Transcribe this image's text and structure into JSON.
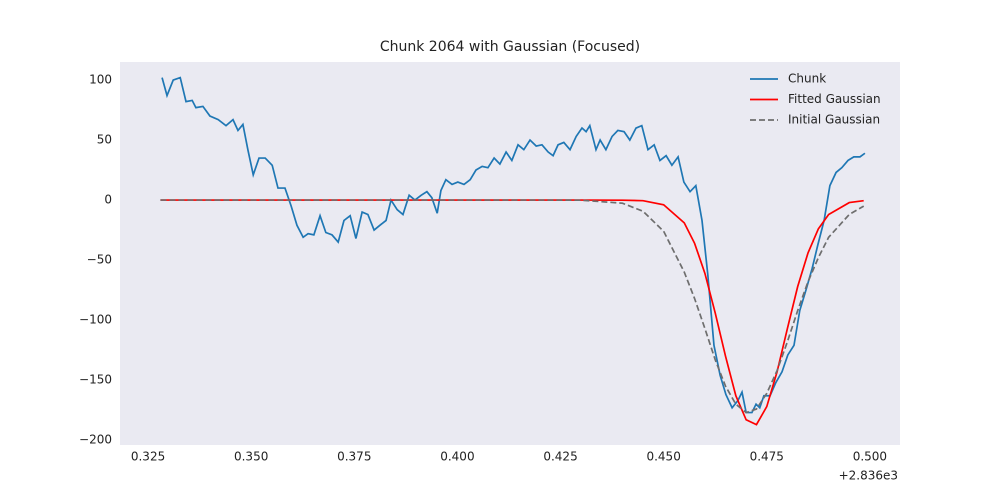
{
  "chart_data": {
    "type": "line",
    "title": "Chunk 2064 with Gaussian (Focused)",
    "x_offset_label": "+2.836e3",
    "xlim": [
      0.3182,
      0.5073
    ],
    "ylim": [
      -204,
      115
    ],
    "xticks": [
      0.325,
      {
        "value": 0.35,
        "label": "0.350"
      },
      0.375,
      {
        "value": 0.4,
        "label": "0.400"
      },
      0.425,
      {
        "value": 0.45,
        "label": "0.450"
      },
      0.475,
      {
        "value": 0.5,
        "label": "0.500"
      }
    ],
    "yticks": [
      {
        "value": -200,
        "label": "−200"
      },
      {
        "value": -150,
        "label": "−150"
      },
      {
        "value": -100,
        "label": "−100"
      },
      {
        "value": -50,
        "label": "−50"
      },
      0,
      50,
      100
    ],
    "grid": false,
    "legend": "upper right",
    "series": [
      {
        "name": "Chunk",
        "color": "#1f77b4",
        "linestyle": "solid",
        "x": [
          0.3284,
          0.3296,
          0.3311,
          0.3328,
          0.3342,
          0.3357,
          0.3366,
          0.3383,
          0.34,
          0.342,
          0.3439,
          0.3456,
          0.3468,
          0.348,
          0.3492,
          0.3505,
          0.3519,
          0.3534,
          0.3551,
          0.3565,
          0.3582,
          0.3597,
          0.3611,
          0.3626,
          0.3638,
          0.3652,
          0.3667,
          0.3681,
          0.3696,
          0.3711,
          0.3725,
          0.374,
          0.3754,
          0.3769,
          0.3783,
          0.3798,
          0.3812,
          0.3827,
          0.3839,
          0.3854,
          0.3868,
          0.3883,
          0.3897,
          0.3912,
          0.3926,
          0.3938,
          0.3951,
          0.396,
          0.3972,
          0.3987,
          0.4001,
          0.4016,
          0.4031,
          0.4045,
          0.406,
          0.4074,
          0.4089,
          0.4103,
          0.4118,
          0.4132,
          0.4147,
          0.4161,
          0.4176,
          0.4191,
          0.4205,
          0.422,
          0.4232,
          0.4244,
          0.4258,
          0.4273,
          0.4288,
          0.4302,
          0.4312,
          0.4321,
          0.4336,
          0.4346,
          0.436,
          0.4375,
          0.4389,
          0.4404,
          0.4418,
          0.4433,
          0.4447,
          0.4462,
          0.4477,
          0.4491,
          0.4506,
          0.452,
          0.4535,
          0.4549,
          0.4564,
          0.4578,
          0.4593,
          0.4607,
          0.4622,
          0.4637,
          0.4651,
          0.4666,
          0.468,
          0.469,
          0.47,
          0.4714,
          0.4724,
          0.4733,
          0.4743,
          0.4758,
          0.4772,
          0.4787,
          0.4801,
          0.4816,
          0.483,
          0.4845,
          0.486,
          0.4874,
          0.4889,
          0.4903,
          0.4918,
          0.4932,
          0.4947,
          0.4961,
          0.4976,
          0.4988
        ],
        "values": [
          102,
          87,
          100,
          102,
          82,
          83,
          77,
          78,
          70,
          67,
          62,
          67,
          58,
          63,
          42,
          21,
          35,
          35,
          29,
          10,
          10,
          -5,
          -21,
          -31,
          -28,
          -29,
          -13,
          -27,
          -29,
          -35,
          -17,
          -13,
          -32,
          -10,
          -12,
          -25,
          -21,
          -17,
          0,
          -8,
          -12,
          4,
          0,
          4,
          7,
          2,
          -11,
          8,
          17,
          13,
          15,
          13,
          17,
          25,
          28,
          27,
          35,
          30,
          40,
          33,
          46,
          42,
          50,
          45,
          46,
          40,
          37,
          46,
          48,
          42,
          53,
          60,
          57,
          62,
          42,
          50,
          42,
          53,
          58,
          57,
          50,
          60,
          62,
          42,
          46,
          33,
          37,
          29,
          36,
          15,
          7,
          12,
          -17,
          -62,
          -121,
          -146,
          -162,
          -173,
          -167,
          -160,
          -177,
          -177,
          -170,
          -173,
          -163,
          -163,
          -152,
          -143,
          -129,
          -121,
          -92,
          -75,
          -57,
          -37,
          -17,
          12,
          23,
          27,
          33,
          36,
          36,
          39
        ]
      },
      {
        "name": "Fitted Gaussian",
        "color": "#ff0000",
        "linestyle": "solid",
        "x": [
          0.328,
          0.35,
          0.4,
          0.42,
          0.43,
          0.44,
          0.445,
          0.45,
          0.455,
          0.4575,
          0.46,
          0.4625,
          0.465,
          0.4675,
          0.47,
          0.4725,
          0.475,
          0.4775,
          0.48,
          0.4825,
          0.485,
          0.4875,
          0.49,
          0.495,
          0.4985
        ],
        "values": [
          0,
          0,
          0,
          0,
          0,
          -0.1,
          -0.5,
          -3.9,
          -19,
          -36,
          -61,
          -94,
          -130,
          -163,
          -183,
          -187,
          -172,
          -143,
          -107,
          -72,
          -44,
          -24,
          -12,
          -2.1,
          -0.5
        ]
      },
      {
        "name": "Initial Gaussian",
        "color": "#6e6e6e",
        "linestyle": "dashed",
        "x": [
          0.328,
          0.35,
          0.4,
          0.42,
          0.43,
          0.44,
          0.445,
          0.45,
          0.455,
          0.4575,
          0.46,
          0.4625,
          0.465,
          0.4675,
          0.47,
          0.4725,
          0.475,
          0.4775,
          0.48,
          0.4825,
          0.485,
          0.4875,
          0.49,
          0.495,
          0.4985
        ],
        "values": [
          0,
          0,
          0,
          0,
          -0.1,
          -2.6,
          -9.3,
          -26,
          -60,
          -82,
          -107,
          -133,
          -155,
          -170,
          -177,
          -174,
          -161,
          -142,
          -118,
          -92,
          -68,
          -48,
          -31,
          -12,
          -5
        ]
      }
    ]
  }
}
